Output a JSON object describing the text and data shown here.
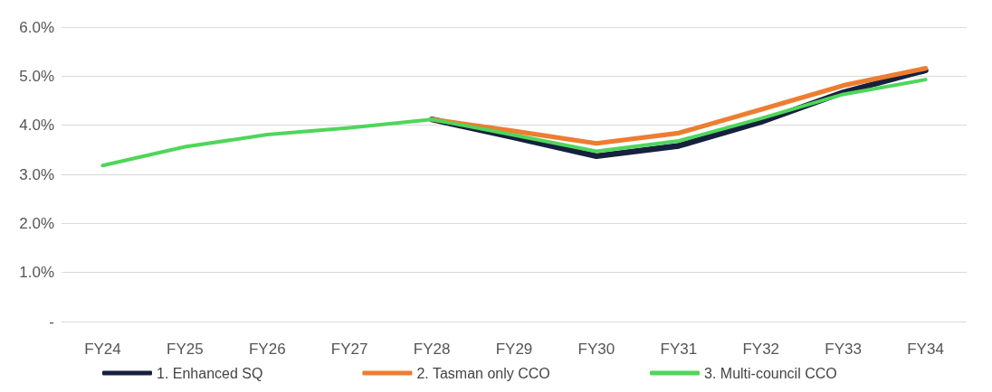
{
  "chart_data": {
    "type": "line",
    "categories": [
      "FY24",
      "FY25",
      "FY26",
      "FY27",
      "FY28",
      "FY29",
      "FY30",
      "FY31",
      "FY32",
      "FY33",
      "FY34"
    ],
    "series": [
      {
        "name": "1. Enhanced SQ",
        "color": "#16213e",
        "values": [
          null,
          null,
          null,
          null,
          4.12,
          3.75,
          3.37,
          3.58,
          4.07,
          4.67,
          5.12
        ]
      },
      {
        "name": "2. Tasman only CCO",
        "color": "#ed7d31",
        "values": [
          null,
          null,
          null,
          null,
          4.12,
          3.88,
          3.63,
          3.84,
          4.32,
          4.81,
          5.16
        ]
      },
      {
        "name": "3. Multi-council CCO",
        "color": "#4fd65a",
        "values": [
          3.18,
          3.56,
          3.81,
          3.95,
          4.12,
          3.8,
          3.47,
          3.68,
          4.14,
          4.63,
          4.93
        ]
      }
    ],
    "ylim": [
      0,
      6
    ],
    "yticks": [
      {
        "value": 0,
        "label": "-"
      },
      {
        "value": 1,
        "label": "1.0%"
      },
      {
        "value": 2,
        "label": "2.0%"
      },
      {
        "value": 3,
        "label": "3.0%"
      },
      {
        "value": 4,
        "label": "4.0%"
      },
      {
        "value": 5,
        "label": "5.0%"
      },
      {
        "value": 6,
        "label": "6.0%"
      }
    ],
    "grid": "y",
    "legend": "bottom",
    "marker": "none",
    "line_style": "solid"
  }
}
